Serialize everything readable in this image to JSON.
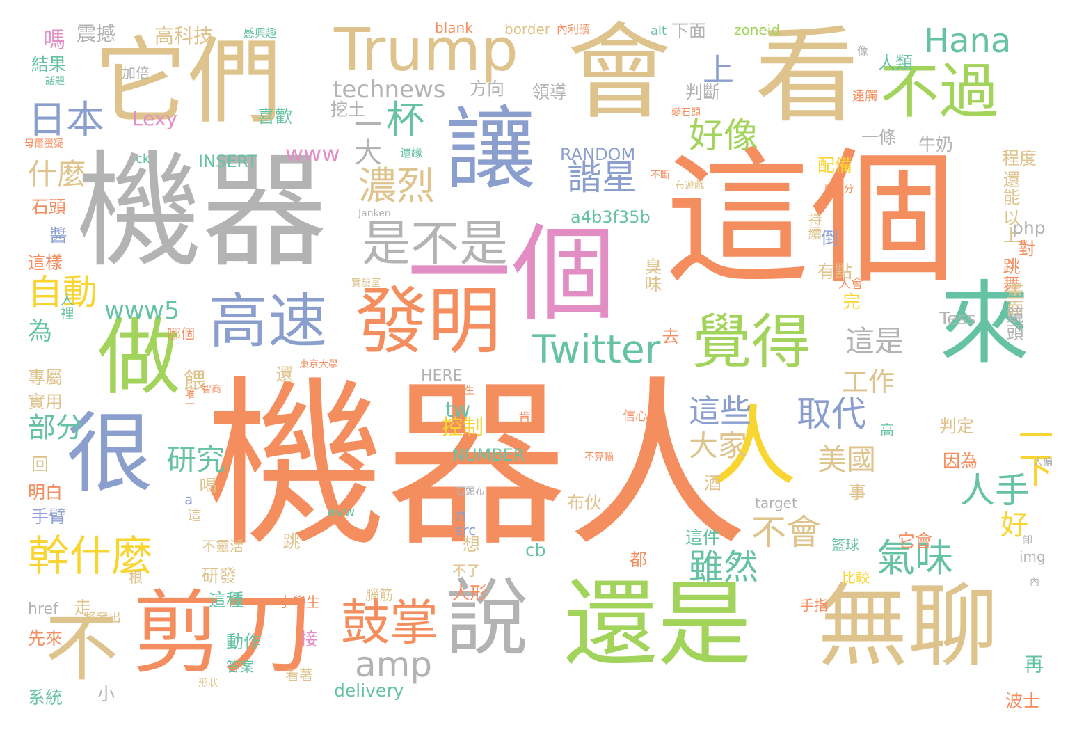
{
  "colors": {
    "orange": "#f58e5e",
    "gray": "#b3b3b3",
    "tan": "#dfc38c",
    "green": "#a2d45b",
    "blue": "#8b9fcf",
    "teal": "#66c2a4",
    "yellow": "#f9d531",
    "pink": "#e28ec5"
  },
  "words": [
    {
      "text": "機器人",
      "color": "orange"
    },
    {
      "text": "機器",
      "color": "gray"
    },
    {
      "text": "這個",
      "color": "orange"
    },
    {
      "text": "一個",
      "color": "pink"
    },
    {
      "text": "讓",
      "color": "blue"
    },
    {
      "text": "會",
      "color": "tan"
    },
    {
      "text": "看",
      "color": "tan"
    },
    {
      "text": "它們",
      "color": "tan"
    },
    {
      "text": "做",
      "color": "green"
    },
    {
      "text": "很",
      "color": "blue"
    },
    {
      "text": "還是",
      "color": "green"
    },
    {
      "text": "無聊",
      "color": "tan"
    },
    {
      "text": "說",
      "color": "gray"
    },
    {
      "text": "剪刀",
      "color": "orange"
    },
    {
      "text": "不",
      "color": "tan"
    },
    {
      "text": "來",
      "color": "teal"
    },
    {
      "text": "人",
      "color": "yellow"
    },
    {
      "text": "發明",
      "color": "orange"
    },
    {
      "text": "不過",
      "color": "green"
    },
    {
      "text": "覺得",
      "color": "green"
    },
    {
      "text": "高速",
      "color": "blue"
    },
    {
      "text": "Trump",
      "color": "tan"
    },
    {
      "text": "Hana",
      "color": "teal"
    },
    {
      "text": "Twitter",
      "color": "teal"
    },
    {
      "text": "幹什麼",
      "color": "yellow"
    },
    {
      "text": "鼓掌",
      "color": "orange"
    },
    {
      "text": "是不是",
      "color": "gray"
    },
    {
      "text": "氣味",
      "color": "teal"
    },
    {
      "text": "杯",
      "color": "teal"
    },
    {
      "text": "一大",
      "color": "gray"
    },
    {
      "text": "濃烈",
      "color": "tan"
    },
    {
      "text": "日本",
      "color": "blue"
    },
    {
      "text": "諧星",
      "color": "blue"
    },
    {
      "text": "好像",
      "color": "green"
    },
    {
      "text": "amp",
      "color": "gray"
    },
    {
      "text": "technews",
      "color": "gray"
    },
    {
      "text": "取代",
      "color": "blue"
    },
    {
      "text": "這些",
      "color": "blue"
    },
    {
      "text": "雖然",
      "color": "teal"
    },
    {
      "text": "不會",
      "color": "tan"
    },
    {
      "text": "自動",
      "color": "yellow"
    },
    {
      "text": "上",
      "color": "blue"
    },
    {
      "text": "一下",
      "color": "yellow"
    },
    {
      "text": "人手",
      "color": "teal"
    },
    {
      "text": "好",
      "color": "yellow"
    },
    {
      "text": "美國",
      "color": "tan"
    },
    {
      "text": "大家",
      "color": "tan"
    },
    {
      "text": "這是",
      "color": "gray"
    },
    {
      "text": "工作",
      "color": "tan"
    },
    {
      "text": "研究",
      "color": "teal"
    },
    {
      "text": "什麼",
      "color": "tan"
    },
    {
      "text": "www5",
      "color": "teal"
    },
    {
      "text": "www",
      "color": "pink"
    },
    {
      "text": "嗎",
      "color": "pink"
    },
    {
      "text": "震撼",
      "color": "gray"
    },
    {
      "text": "高科技",
      "color": "tan"
    },
    {
      "text": "結果",
      "color": "teal"
    },
    {
      "text": "Lexy",
      "color": "pink"
    },
    {
      "text": "INSERT",
      "color": "teal"
    },
    {
      "text": "RANDOM",
      "color": "blue"
    },
    {
      "text": "a4b3f35b",
      "color": "teal"
    },
    {
      "text": "部分",
      "color": "teal"
    },
    {
      "text": "為",
      "color": "teal"
    },
    {
      "text": "餵",
      "color": "tan"
    },
    {
      "text": "控制",
      "color": "yellow"
    },
    {
      "text": "NUMBER",
      "color": "teal"
    },
    {
      "text": "tw",
      "color": "teal"
    },
    {
      "text": "判斷",
      "color": "gray"
    },
    {
      "text": "領導",
      "color": "gray"
    },
    {
      "text": "方向",
      "color": "gray"
    },
    {
      "text": "挖土",
      "color": "gray"
    },
    {
      "text": "喜歡",
      "color": "teal"
    },
    {
      "text": "人類",
      "color": "teal"
    },
    {
      "text": "下面",
      "color": "gray"
    },
    {
      "text": "配備",
      "color": "yellow"
    },
    {
      "text": "一條",
      "color": "gray"
    },
    {
      "text": "牛奶",
      "color": "gray"
    },
    {
      "text": "程度",
      "color": "tan"
    },
    {
      "text": "還能",
      "color": "tan"
    },
    {
      "text": "以上",
      "color": "tan"
    },
    {
      "text": "php",
      "color": "gray"
    },
    {
      "text": "對",
      "color": "orange"
    },
    {
      "text": "跳舞",
      "color": "orange"
    },
    {
      "text": "畫面",
      "color": "tan"
    },
    {
      "text": "鏡頭",
      "color": "gray"
    },
    {
      "text": "Tess",
      "color": "gray"
    },
    {
      "text": "有點",
      "color": "tan"
    },
    {
      "text": "倒",
      "color": "blue"
    },
    {
      "text": "臭味",
      "color": "tan"
    },
    {
      "text": "持續",
      "color": "tan"
    },
    {
      "text": "石頭",
      "color": "orange"
    },
    {
      "text": "這樣",
      "color": "orange"
    },
    {
      "text": "醬",
      "color": "blue"
    },
    {
      "text": "人裡",
      "color": "teal"
    },
    {
      "text": "哪個",
      "color": "orange"
    },
    {
      "text": "專屬",
      "color": "tan"
    },
    {
      "text": "實用",
      "color": "tan"
    },
    {
      "text": "回",
      "color": "tan"
    },
    {
      "text": "明白",
      "color": "orange"
    },
    {
      "text": "手臂",
      "color": "blue"
    },
    {
      "text": "a",
      "color": "blue"
    },
    {
      "text": "喝",
      "color": "tan"
    },
    {
      "text": "這",
      "color": "tan"
    },
    {
      "text": "酒",
      "color": "tan"
    },
    {
      "text": "事",
      "color": "tan"
    },
    {
      "text": "target",
      "color": "gray"
    },
    {
      "text": "avw",
      "color": "teal"
    },
    {
      "text": "n",
      "color": "blue"
    },
    {
      "text": "src",
      "color": "blue"
    },
    {
      "text": "cb",
      "color": "teal"
    },
    {
      "text": "布伙",
      "color": "tan"
    },
    {
      "text": "這件",
      "color": "teal"
    },
    {
      "text": "它會",
      "color": "orange"
    },
    {
      "text": "籃球",
      "color": "teal"
    },
    {
      "text": "都",
      "color": "orange"
    },
    {
      "text": "想",
      "color": "tan"
    },
    {
      "text": "不了",
      "color": "tan"
    },
    {
      "text": "人形",
      "color": "orange"
    },
    {
      "text": "研發",
      "color": "tan"
    },
    {
      "text": "根",
      "color": "tan"
    },
    {
      "text": "不靈活",
      "color": "tan"
    },
    {
      "text": "跳",
      "color": "tan"
    },
    {
      "text": "走",
      "color": "tan"
    },
    {
      "text": "這種",
      "color": "teal"
    },
    {
      "text": "小學生",
      "color": "orange"
    },
    {
      "text": "腦筋",
      "color": "tan"
    },
    {
      "text": "比較",
      "color": "yellow"
    },
    {
      "text": "手指",
      "color": "orange"
    },
    {
      "text": "href",
      "color": "gray"
    },
    {
      "text": "先來",
      "color": "orange"
    },
    {
      "text": "將發出",
      "color": "tan"
    },
    {
      "text": "動作",
      "color": "teal"
    },
    {
      "text": "接",
      "color": "pink"
    },
    {
      "text": "看著",
      "color": "tan"
    },
    {
      "text": "答案",
      "color": "teal"
    },
    {
      "text": "系統",
      "color": "teal"
    },
    {
      "text": "小",
      "color": "gray"
    },
    {
      "text": "delivery",
      "color": "teal"
    },
    {
      "text": "再",
      "color": "teal"
    },
    {
      "text": "波士",
      "color": "orange"
    },
    {
      "text": "判定",
      "color": "tan"
    },
    {
      "text": "因為",
      "color": "orange"
    },
    {
      "text": "img",
      "color": "gray"
    },
    {
      "text": "HERE",
      "color": "gray"
    },
    {
      "text": "還",
      "color": "tan"
    },
    {
      "text": "去",
      "color": "orange"
    },
    {
      "text": "完",
      "color": "yellow"
    },
    {
      "text": "人會",
      "color": "orange"
    },
    {
      "text": "肯定",
      "color": "orange"
    },
    {
      "text": "信心",
      "color": "orange"
    },
    {
      "text": "高",
      "color": "teal"
    },
    {
      "text": "blank",
      "color": "orange"
    },
    {
      "text": "border",
      "color": "tan"
    },
    {
      "text": "內利讀",
      "color": "orange"
    },
    {
      "text": "alt",
      "color": "teal"
    },
    {
      "text": "zoneid",
      "color": "green"
    },
    {
      "text": "感興趣",
      "color": "teal"
    },
    {
      "text": "加倍",
      "color": "gray"
    },
    {
      "text": "話題",
      "color": "teal"
    },
    {
      "text": "母爾蛋疑",
      "color": "orange"
    },
    {
      "text": "ck",
      "color": "teal"
    },
    {
      "text": "還緣",
      "color": "teal"
    },
    {
      "text": "遠觸",
      "color": "orange"
    },
    {
      "text": "像",
      "color": "gray"
    },
    {
      "text": "實驗室",
      "color": "tan"
    },
    {
      "text": "東京大學",
      "color": "orange"
    },
    {
      "text": "大學生",
      "color": "orange"
    },
    {
      "text": "智商",
      "color": "orange"
    },
    {
      "text": "唯一",
      "color": "orange"
    },
    {
      "text": "石頭布",
      "color": "gray"
    },
    {
      "text": "形狀",
      "color": "tan"
    },
    {
      "text": "Janken",
      "color": "gray"
    },
    {
      "text": "布遊戲",
      "color": "tan"
    },
    {
      "text": "不斷",
      "color": "orange"
    },
    {
      "text": "帶馬分",
      "color": "orange"
    },
    {
      "text": "變石頭",
      "color": "orange"
    },
    {
      "text": "不算輸",
      "color": "orange"
    },
    {
      "text": "人偏",
      "color": "gray"
    },
    {
      "text": "卸",
      "color": "gray"
    },
    {
      "text": "內",
      "color": "gray"
    }
  ]
}
